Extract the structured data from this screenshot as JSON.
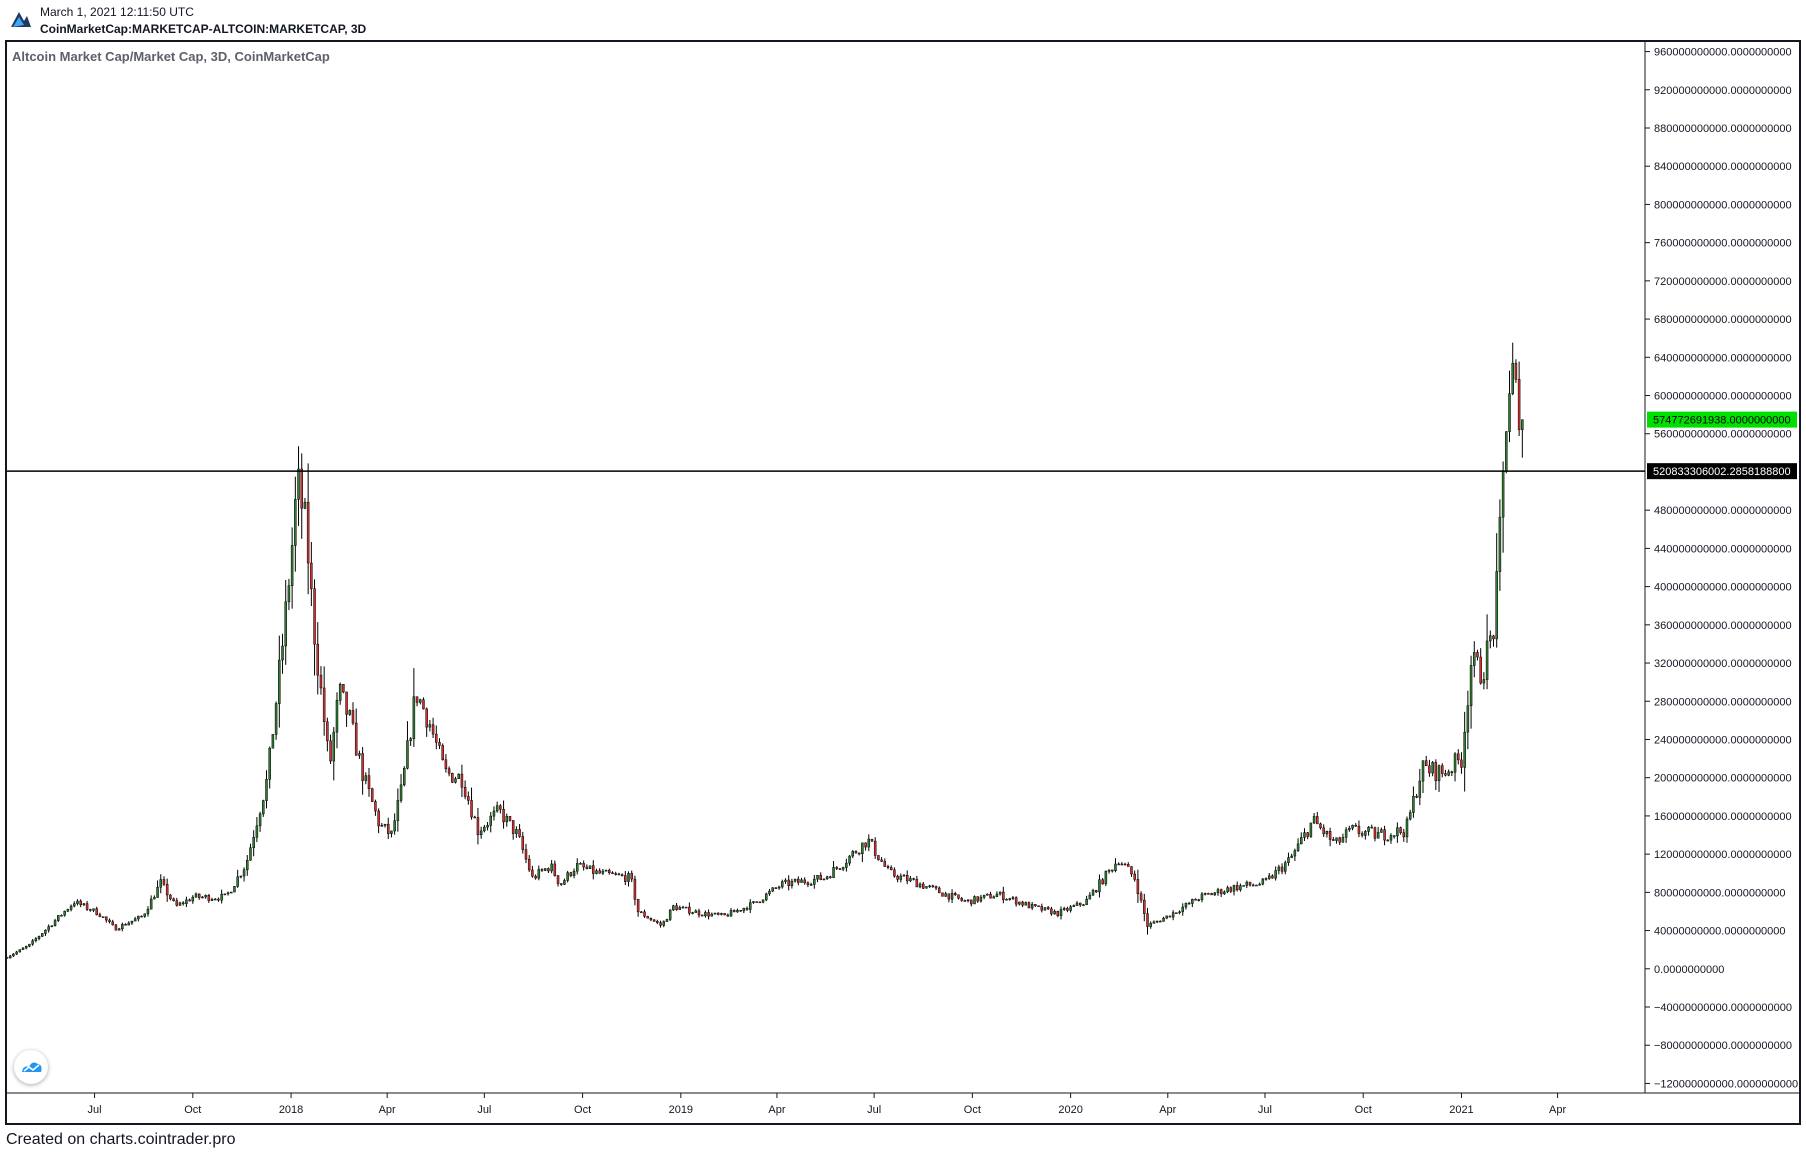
{
  "header": {
    "timestamp": "March 1, 2021 12:11:50 UTC",
    "symbol_line": "CoinMarketCap:MARKETCAP-ALTCOIN:MARKETCAP, 3D"
  },
  "icons": {
    "logo": "chart-logo-icon",
    "badge": "tradingview-badge-icon"
  },
  "footer": {
    "text": "Created on charts.cointrader.pro"
  },
  "colors": {
    "up": "#2e7d32",
    "down": "#d32f2f",
    "wick": "#000000",
    "last_price_badge": "#00e000",
    "hline_badge": "#000000",
    "axis_text": "#131722"
  },
  "chart_data": {
    "type": "candlestick",
    "title": "Altcoin Market Cap/Market Cap, 3D, CoinMarketCap",
    "interval": "3D",
    "ylim": [
      -130000000000,
      970000000000
    ],
    "y_ticks": [
      {
        "value": 960000000000,
        "label": "960000000000.0000000000"
      },
      {
        "value": 920000000000,
        "label": "920000000000.0000000000"
      },
      {
        "value": 880000000000,
        "label": "880000000000.0000000000"
      },
      {
        "value": 840000000000,
        "label": "840000000000.0000000000"
      },
      {
        "value": 800000000000,
        "label": "800000000000.0000000000"
      },
      {
        "value": 760000000000,
        "label": "760000000000.0000000000"
      },
      {
        "value": 720000000000,
        "label": "720000000000.0000000000"
      },
      {
        "value": 680000000000,
        "label": "680000000000.0000000000"
      },
      {
        "value": 640000000000,
        "label": "640000000000.0000000000"
      },
      {
        "value": 600000000000,
        "label": "600000000000.0000000000"
      },
      {
        "value": 560000000000,
        "label": "560000000000.0000000000"
      },
      {
        "value": 480000000000,
        "label": "480000000000.0000000000"
      },
      {
        "value": 440000000000,
        "label": "440000000000.0000000000"
      },
      {
        "value": 400000000000,
        "label": "400000000000.0000000000"
      },
      {
        "value": 360000000000,
        "label": "360000000000.0000000000"
      },
      {
        "value": 320000000000,
        "label": "320000000000.0000000000"
      },
      {
        "value": 280000000000,
        "label": "280000000000.0000000000"
      },
      {
        "value": 240000000000,
        "label": "240000000000.0000000000"
      },
      {
        "value": 200000000000,
        "label": "200000000000.0000000000"
      },
      {
        "value": 160000000000,
        "label": "160000000000.0000000000"
      },
      {
        "value": 120000000000,
        "label": "120000000000.0000000000"
      },
      {
        "value": 80000000000,
        "label": "80000000000.0000000000"
      },
      {
        "value": 40000000000,
        "label": "40000000000.0000000000"
      },
      {
        "value": 0,
        "label": "0.0000000000"
      },
      {
        "value": -40000000000,
        "label": "−40000000000.0000000000"
      },
      {
        "value": -80000000000,
        "label": "−80000000000.0000000000"
      },
      {
        "value": -120000000000,
        "label": "−120000000000.0000000000"
      }
    ],
    "x_ticks": [
      {
        "date": "2017-07-01",
        "label": "Jul"
      },
      {
        "date": "2017-10-01",
        "label": "Oct"
      },
      {
        "date": "2018-01-01",
        "label": "2018"
      },
      {
        "date": "2018-04-01",
        "label": "Apr"
      },
      {
        "date": "2018-07-01",
        "label": "Jul"
      },
      {
        "date": "2018-10-01",
        "label": "Oct"
      },
      {
        "date": "2019-01-01",
        "label": "2019"
      },
      {
        "date": "2019-04-01",
        "label": "Apr"
      },
      {
        "date": "2019-07-01",
        "label": "Jul"
      },
      {
        "date": "2019-10-01",
        "label": "Oct"
      },
      {
        "date": "2020-01-01",
        "label": "2020"
      },
      {
        "date": "2020-04-01",
        "label": "Apr"
      },
      {
        "date": "2020-07-01",
        "label": "Jul"
      },
      {
        "date": "2020-10-01",
        "label": "Oct"
      },
      {
        "date": "2021-01-01",
        "label": "2021"
      },
      {
        "date": "2021-04-01",
        "label": "Apr"
      }
    ],
    "xlim": [
      "2017-04-10",
      "2021-06-20"
    ],
    "close_path": [
      [
        "2017-04-10",
        12000000000
      ],
      [
        "2017-05-01",
        25000000000
      ],
      [
        "2017-05-20",
        45000000000
      ],
      [
        "2017-06-12",
        70000000000
      ],
      [
        "2017-07-05",
        58000000000
      ],
      [
        "2017-07-20",
        42000000000
      ],
      [
        "2017-08-15",
        55000000000
      ],
      [
        "2017-09-01",
        90000000000
      ],
      [
        "2017-09-15",
        65000000000
      ],
      [
        "2017-10-01",
        75000000000
      ],
      [
        "2017-11-01",
        75000000000
      ],
      [
        "2017-11-20",
        110000000000
      ],
      [
        "2017-12-10",
        200000000000
      ],
      [
        "2017-12-25",
        350000000000
      ],
      [
        "2018-01-01",
        430000000000
      ],
      [
        "2018-01-07",
        510000000000
      ],
      [
        "2018-01-15",
        460000000000
      ],
      [
        "2018-01-22",
        360000000000
      ],
      [
        "2018-02-06",
        210000000000
      ],
      [
        "2018-02-15",
        290000000000
      ],
      [
        "2018-02-25",
        260000000000
      ],
      [
        "2018-03-10",
        200000000000
      ],
      [
        "2018-03-25",
        150000000000
      ],
      [
        "2018-04-05",
        140000000000
      ],
      [
        "2018-04-15",
        190000000000
      ],
      [
        "2018-04-28",
        290000000000
      ],
      [
        "2018-05-10",
        260000000000
      ],
      [
        "2018-05-25",
        205000000000
      ],
      [
        "2018-06-10",
        200000000000
      ],
      [
        "2018-06-25",
        145000000000
      ],
      [
        "2018-07-15",
        165000000000
      ],
      [
        "2018-08-01",
        140000000000
      ],
      [
        "2018-08-15",
        95000000000
      ],
      [
        "2018-09-01",
        108000000000
      ],
      [
        "2018-09-10",
        88000000000
      ],
      [
        "2018-09-25",
        108000000000
      ],
      [
        "2018-10-15",
        100000000000
      ],
      [
        "2018-11-15",
        95000000000
      ],
      [
        "2018-11-22",
        60000000000
      ],
      [
        "2018-12-14",
        45000000000
      ],
      [
        "2018-12-25",
        65000000000
      ],
      [
        "2019-01-20",
        58000000000
      ],
      [
        "2019-02-10",
        55000000000
      ],
      [
        "2019-03-10",
        68000000000
      ],
      [
        "2019-04-05",
        88000000000
      ],
      [
        "2019-05-15",
        95000000000
      ],
      [
        "2019-06-01",
        110000000000
      ],
      [
        "2019-06-25",
        135000000000
      ],
      [
        "2019-07-15",
        100000000000
      ],
      [
        "2019-08-10",
        90000000000
      ],
      [
        "2019-09-01",
        80000000000
      ],
      [
        "2019-09-25",
        70000000000
      ],
      [
        "2019-10-25",
        78000000000
      ],
      [
        "2019-11-25",
        65000000000
      ],
      [
        "2019-12-20",
        58000000000
      ],
      [
        "2020-01-15",
        70000000000
      ],
      [
        "2020-02-15",
        115000000000
      ],
      [
        "2020-03-01",
        95000000000
      ],
      [
        "2020-03-13",
        45000000000
      ],
      [
        "2020-04-01",
        55000000000
      ],
      [
        "2020-05-01",
        75000000000
      ],
      [
        "2020-06-01",
        85000000000
      ],
      [
        "2020-07-01",
        90000000000
      ],
      [
        "2020-07-25",
        115000000000
      ],
      [
        "2020-08-15",
        155000000000
      ],
      [
        "2020-09-05",
        130000000000
      ],
      [
        "2020-09-20",
        145000000000
      ],
      [
        "2020-10-15",
        140000000000
      ],
      [
        "2020-11-10",
        145000000000
      ],
      [
        "2020-11-25",
        210000000000
      ],
      [
        "2020-12-15",
        205000000000
      ],
      [
        "2021-01-01",
        220000000000
      ],
      [
        "2021-01-10",
        320000000000
      ],
      [
        "2021-01-20",
        310000000000
      ],
      [
        "2021-02-01",
        360000000000
      ],
      [
        "2021-02-07",
        470000000000
      ],
      [
        "2021-02-13",
        600000000000
      ],
      [
        "2021-02-20",
        630000000000
      ],
      [
        "2021-02-23",
        540000000000
      ],
      [
        "2021-02-28",
        574772691938
      ]
    ],
    "annotations": [
      {
        "type": "horizontal_line",
        "value": 520833306002.2858,
        "label": "520833306002.2858188800"
      },
      {
        "type": "last_price",
        "value": 574772691938,
        "label": "574772691938.0000000000"
      }
    ]
  }
}
